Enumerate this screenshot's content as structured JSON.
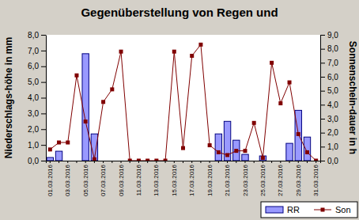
{
  "chart_data": {
    "type": "bar",
    "title": "Gegenüberstellung von Regen und",
    "y_label": "Niederschlags-höhe in mm",
    "y2_label": "Sonnenschein-dauer in h",
    "categories": [
      "01.03.2016",
      null,
      "03.03.2016",
      null,
      "05.03.2016",
      null,
      "07.03.2016",
      null,
      "09.03.2016",
      null,
      "11.03.2016",
      null,
      "13.03.2016",
      null,
      "15.03.2016",
      null,
      "17.03.2016",
      null,
      "19.03.2016",
      null,
      "21.03.2016",
      null,
      "23.03.2016",
      null,
      "25.03.2016",
      null,
      "27.03.2016",
      null,
      "29.03.2016",
      null,
      "31.03.2016"
    ],
    "series": [
      {
        "name": "RR",
        "type": "bar",
        "color": "#9999ff",
        "values": [
          0.2,
          0.6,
          0,
          0,
          6.8,
          1.7,
          0,
          0,
          0,
          0,
          0,
          0,
          0,
          0,
          0,
          0,
          0,
          0,
          0,
          1.7,
          2.5,
          1.3,
          0.4,
          0,
          0.3,
          0,
          0,
          1.1,
          3.2,
          1.5,
          0
        ]
      },
      {
        "name": "Son",
        "type": "line",
        "axis": "y2",
        "color": "#800000",
        "marker": "square",
        "values": [
          0.8,
          1.3,
          1.3,
          6.1,
          2.8,
          0.1,
          4.2,
          5.1,
          7.8,
          0,
          0,
          0,
          0,
          0,
          7.8,
          0.9,
          7.5,
          8.3,
          1.1,
          0.6,
          0.4,
          0.7,
          0.7,
          2.7,
          0.2,
          7.0,
          4.1,
          5.6,
          1.9,
          0.6,
          0
        ]
      }
    ],
    "ylim": [
      0,
      8
    ],
    "yticks": [
      {
        "value": 0,
        "label": "0,0"
      },
      {
        "value": 1,
        "label": "1,0"
      },
      {
        "value": 2,
        "label": "2,0"
      },
      {
        "value": 3,
        "label": "3,0"
      },
      {
        "value": 4,
        "label": "4,0"
      },
      {
        "value": 5,
        "label": "5,0"
      },
      {
        "value": 6,
        "label": "6,0"
      },
      {
        "value": 7,
        "label": "7,0"
      },
      {
        "value": 8,
        "label": "8,0"
      }
    ],
    "y2lim": [
      0,
      9
    ],
    "y2ticks": [
      {
        "value": 0,
        "label": "0,0"
      },
      {
        "value": 1,
        "label": "1,0"
      },
      {
        "value": 2,
        "label": "2,0"
      },
      {
        "value": 3,
        "label": "3,0"
      },
      {
        "value": 4,
        "label": "4,0"
      },
      {
        "value": 5,
        "label": "5,0"
      },
      {
        "value": 6,
        "label": "6,0"
      },
      {
        "value": 7,
        "label": "7,0"
      },
      {
        "value": 8,
        "label": "8,0"
      },
      {
        "value": 9,
        "label": "9,0"
      }
    ],
    "grid": false,
    "legend": "bottom right"
  }
}
